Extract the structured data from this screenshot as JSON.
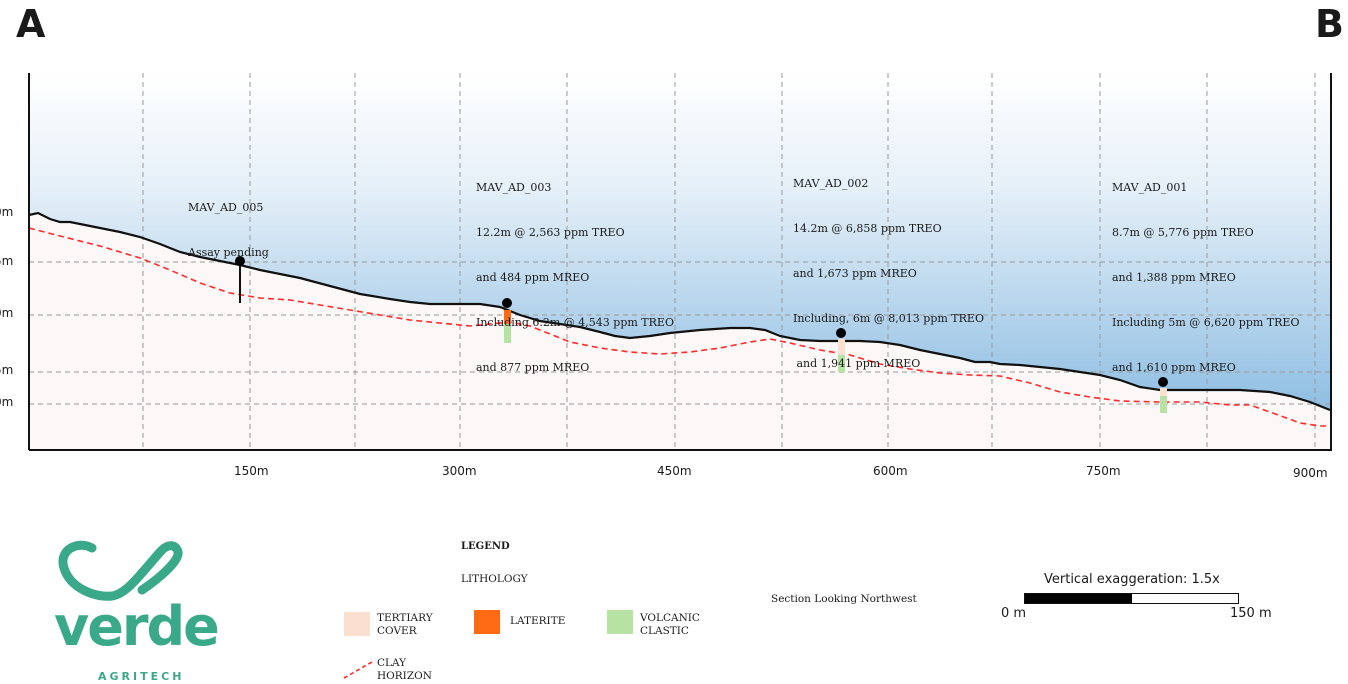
{
  "corners": {
    "left": "A",
    "right": "B"
  },
  "elevation_labels": [
    "0m",
    "5m",
    "0m",
    "5m",
    "0m"
  ],
  "distance_labels": [
    "150m",
    "300m",
    "450m",
    "600m",
    "750m",
    "900m"
  ],
  "drillholes": [
    {
      "id": "MAV_AD_005",
      "lines": [
        "MAV_AD_005",
        "Assay pending"
      ]
    },
    {
      "id": "MAV_AD_003",
      "lines": [
        "MAV_AD_003",
        "12.2m @ 2,563 ppm TREO",
        "and 484 ppm MREO",
        "Including 6.2m @ 4,543 ppm TREO",
        "and 877 ppm MREO"
      ]
    },
    {
      "id": "MAV_AD_002",
      "lines": [
        "MAV_AD_002",
        "14.2m @ 6,858 ppm TREO",
        "and 1,673 ppm MREO",
        "Including, 6m @ 8,013 ppm TREO",
        " and 1,941 ppm MREO"
      ]
    },
    {
      "id": "MAV_AD_001",
      "lines": [
        "MAV_AD_001",
        "8.7m @ 5,776 ppm TREO",
        "and 1,388 ppm MREO",
        "Including 5m @ 6,620 ppm TREO",
        "and 1,610 ppm MREO"
      ]
    }
  ],
  "legend": {
    "title": "LEGEND",
    "subtitle": "LITHOLOGY",
    "items": [
      {
        "label_1": "TERTIARY",
        "label_2": "COVER",
        "color": "#fbe0d0"
      },
      {
        "label_1": "LATERITE",
        "label_2": "",
        "color": "#ff6a13"
      },
      {
        "label_1": "VOLCANIC",
        "label_2": "CLASTIC",
        "color": "#b6e3a3"
      },
      {
        "label_1": "CLAY",
        "label_2": "HORIZON",
        "color": "#ff2a2a"
      }
    ]
  },
  "section_note": "Section Looking Northwest",
  "scale": {
    "title": "Vertical exaggeration: 1.5x",
    "left": "0 m",
    "right": "150 m"
  },
  "logo": {
    "word": "verde",
    "tag": "AGRITECH",
    "color": "#3aa98a"
  },
  "colors": {
    "sky_top": "#ffffff",
    "sky_bottom": "#9ac5e4",
    "ground": "#fcf8f7",
    "clay_line": "#ff2a2a",
    "laterite": "#ff6a13",
    "volcanic": "#b6e3a3",
    "tertiary": "#fbe0d0"
  }
}
